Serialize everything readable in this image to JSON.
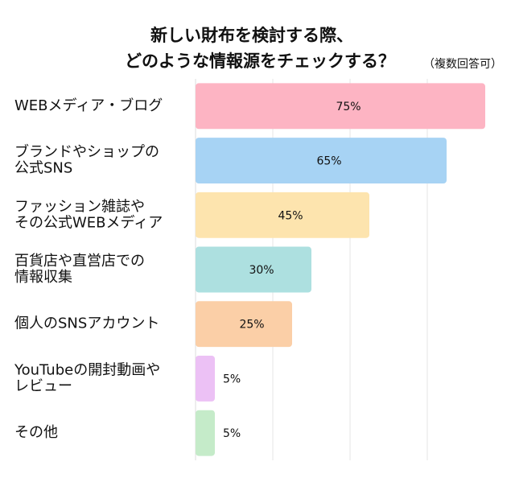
{
  "chart_data": {
    "type": "hbar",
    "title_lines": [
      "新しい財布を検討する際、",
      "どのような情報源をチェックする？"
    ],
    "subtitle": "（複数回答可）",
    "categories": [
      [
        "WEBメディア・ブログ"
      ],
      [
        "ブランドやショップの",
        "公式SNS"
      ],
      [
        "ファッション雑誌や",
        "その公式WEBメディア"
      ],
      [
        "百貨店や直営店での",
        "情報収集"
      ],
      [
        "個人のSNSアカウント"
      ],
      [
        "YouTubeの開封動画や",
        "レビュー"
      ],
      [
        "その他"
      ]
    ],
    "values": [
      75,
      65,
      45,
      30,
      25,
      5,
      5
    ],
    "value_labels": [
      "75%",
      "65%",
      "45%",
      "30%",
      "25%",
      "5%",
      "5%"
    ],
    "colors": [
      "#fdb4c3",
      "#a7d3f4",
      "#fde4ae",
      "#ade0e0",
      "#fbcfa7",
      "#ecc1f5",
      "#c5ebc9"
    ],
    "xlim": [
      0,
      80
    ],
    "xticks": [
      20,
      40,
      60
    ],
    "grid": true
  }
}
